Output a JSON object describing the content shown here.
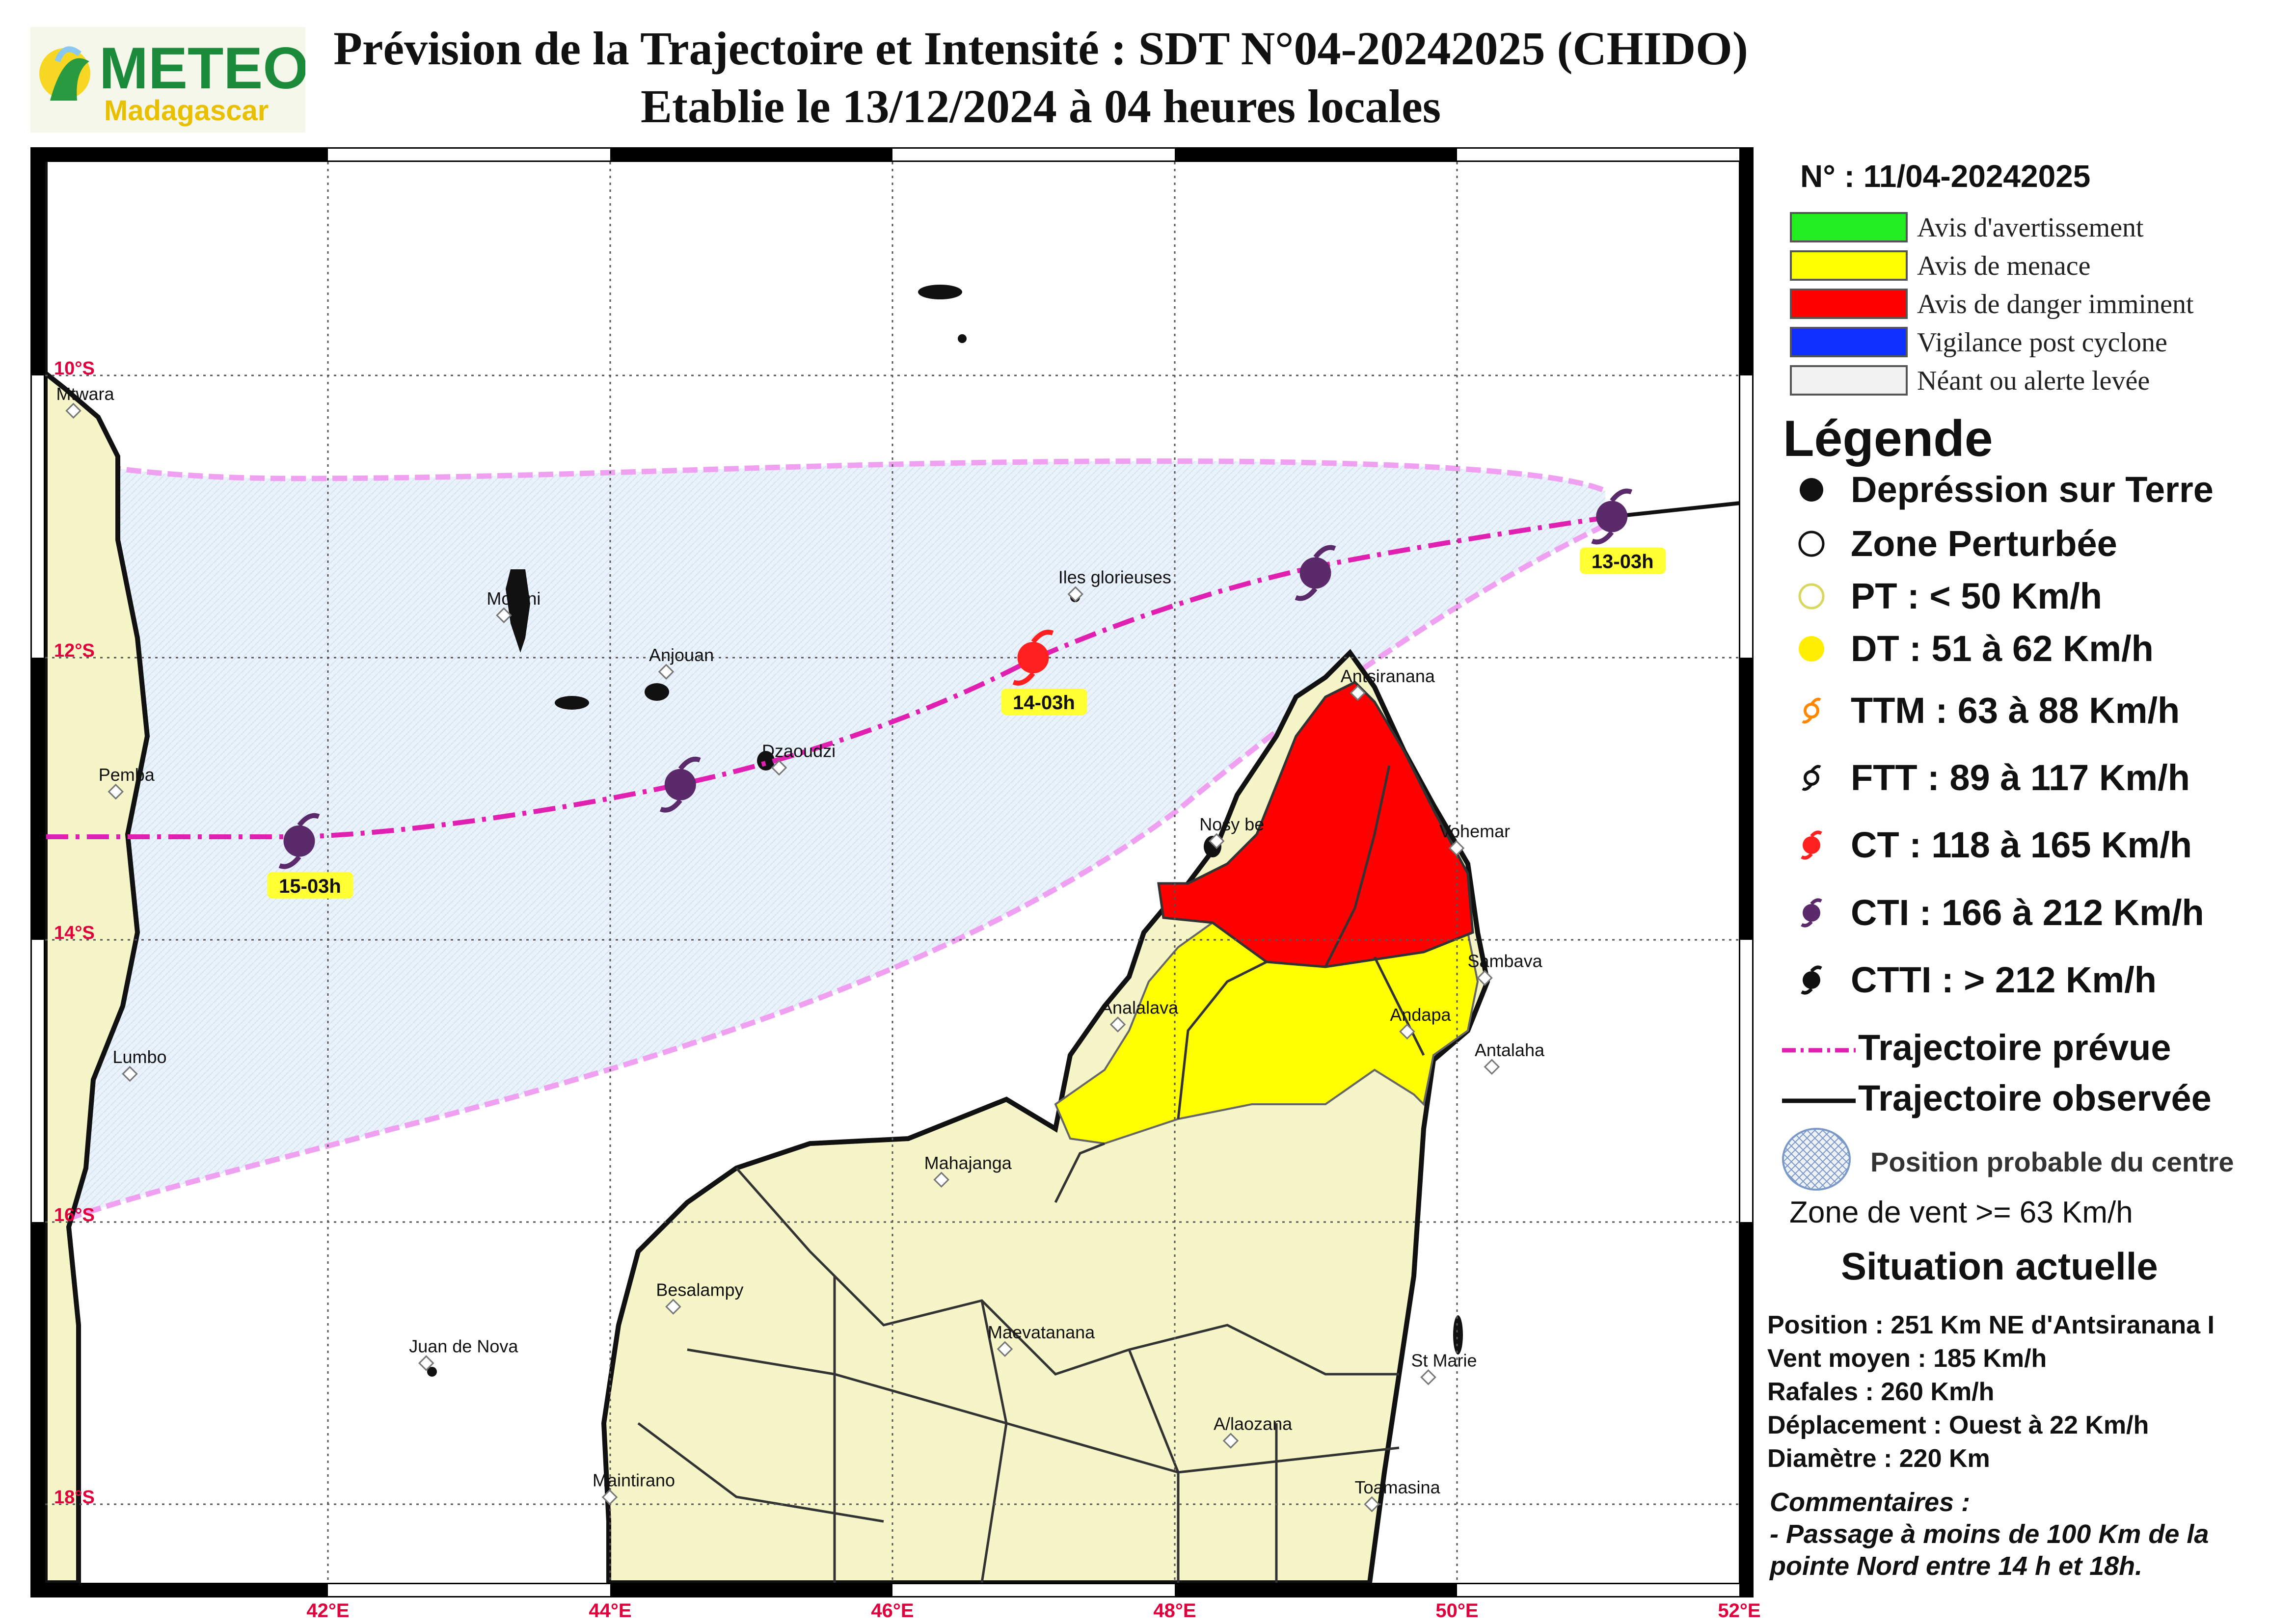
{
  "header": {
    "title_line1": "Prévision de la Trajectoire et Intensité : SDT N°04-20242025 (CHIDO)",
    "title_line2": "Etablie le 13/12/2024 à 04 heures locales"
  },
  "logo": {
    "name": "METEO",
    "sub": "Madagascar"
  },
  "colors": {
    "avis_avertissement": "#22ee22",
    "avis_menace": "#ffff00",
    "avis_danger": "#ff0000",
    "vigilance": "#1030ff",
    "neant": "#f2f2f2",
    "track": "#e020b0",
    "cone_edge": "#f0a0f0",
    "cone_fill": "#e8f0fa",
    "land": "#f5f5c8",
    "cti": "#5a2a6a",
    "ct": "#ff2020"
  },
  "map": {
    "lon_labels": [
      "42°E",
      "44°E",
      "46°E",
      "48°E",
      "50°E",
      "52°E"
    ],
    "lat_labels": [
      "10°S",
      "12°S",
      "14°S",
      "16°S",
      "18°S"
    ],
    "places": [
      {
        "name": "Mtwara",
        "lon": 40.2,
        "lat": 10.25
      },
      {
        "name": "Moroni",
        "lon": 43.25,
        "lat": 11.7
      },
      {
        "name": "Iles glorieuses",
        "lon": 47.3,
        "lat": 11.55
      },
      {
        "name": "Anjouan",
        "lon": 44.4,
        "lat": 12.1
      },
      {
        "name": "Antsiranana",
        "lon": 49.3,
        "lat": 12.25
      },
      {
        "name": "Dzaoudzi",
        "lon": 45.2,
        "lat": 12.78
      },
      {
        "name": "Pemba",
        "lon": 40.5,
        "lat": 12.95
      },
      {
        "name": "Nosy be",
        "lon": 48.3,
        "lat": 13.3
      },
      {
        "name": "Vohemar",
        "lon": 50.0,
        "lat": 13.35
      },
      {
        "name": "Sambava",
        "lon": 50.2,
        "lat": 14.27
      },
      {
        "name": "Analalava",
        "lon": 47.6,
        "lat": 14.6
      },
      {
        "name": "Andapa",
        "lon": 49.65,
        "lat": 14.65
      },
      {
        "name": "Antalaha",
        "lon": 50.25,
        "lat": 14.9
      },
      {
        "name": "Lumbo",
        "lon": 40.6,
        "lat": 14.95
      },
      {
        "name": "Mahajanga",
        "lon": 46.35,
        "lat": 15.7
      },
      {
        "name": "Besalampy",
        "lon": 44.45,
        "lat": 16.6
      },
      {
        "name": "Maevatanana",
        "lon": 46.8,
        "lat": 16.9
      },
      {
        "name": "Juan de Nova",
        "lon": 42.7,
        "lat": 17.0
      },
      {
        "name": "St Marie",
        "lon": 49.8,
        "lat": 17.1
      },
      {
        "name": "A/laozana",
        "lon": 48.4,
        "lat": 17.55
      },
      {
        "name": "Maintirano",
        "lon": 44.0,
        "lat": 17.95
      },
      {
        "name": "Toamasina",
        "lon": 49.4,
        "lat": 18.0
      }
    ],
    "track_points": [
      {
        "label": "13-03h",
        "lon": 51.1,
        "lat": 11.0,
        "cat": "CTI"
      },
      {
        "label": "",
        "lon": 49.0,
        "lat": 11.4,
        "cat": "CTI"
      },
      {
        "label": "14-03h",
        "lon": 47.0,
        "lat": 12.0,
        "cat": "CT"
      },
      {
        "label": "",
        "lon": 44.5,
        "lat": 12.9,
        "cat": "CTI"
      },
      {
        "label": "15-03h",
        "lon": 41.8,
        "lat": 13.3,
        "cat": "CTI"
      }
    ]
  },
  "legend": {
    "bulletin_no": "N° : 11/04-20242025",
    "alerts": [
      "Avis d'avertissement",
      "Avis de menace",
      "Avis de danger imminent",
      "Vigilance post cyclone",
      "Néant ou alerte levée"
    ],
    "title": "Légende",
    "items": [
      {
        "icon": "filled-black-circle-icon",
        "label": "Depréssion sur Terre"
      },
      {
        "icon": "open-circle-icon",
        "label": "Zone Perturbée"
      },
      {
        "icon": "yellow-open-circle-icon",
        "label": "PT : < 50 Km/h"
      },
      {
        "icon": "yellow-dot-icon",
        "label": "DT : 51 à 62 Km/h"
      },
      {
        "icon": "orange-cyclone-icon",
        "label": "TTM : 63 à 88 Km/h"
      },
      {
        "icon": "black-outline-cyclone-icon",
        "label": "FTT : 89 à 117 Km/h"
      },
      {
        "icon": "red-cyclone-icon",
        "label": "CT : 118 à 165 Km/h"
      },
      {
        "icon": "purple-cyclone-icon",
        "label": "CTI : 166 à 212 Km/h"
      },
      {
        "icon": "black-cyclone-icon",
        "label": "CTTI : > 212 Km/h"
      },
      {
        "icon": "dashed-magenta-line-icon",
        "label": "Trajectoire prévue"
      },
      {
        "icon": "black-line-icon",
        "label": "Trajectoire observée"
      }
    ],
    "probable_position": "Position probable du centre",
    "wind_zone": "Zone de vent >= 63 Km/h"
  },
  "situation": {
    "title": "Situation actuelle",
    "lines": [
      "Position : 251 Km NE d'Antsiranana I",
      "Vent moyen : 185 Km/h",
      "Rafales : 260 Km/h",
      "Déplacement : Ouest à 22 Km/h",
      "Diamètre : 220 Km"
    ],
    "comments_title": "Commentaires :",
    "comments": [
      "- Passage à moins de 100 Km de la",
      "pointe Nord entre 14 h et 18h."
    ]
  }
}
